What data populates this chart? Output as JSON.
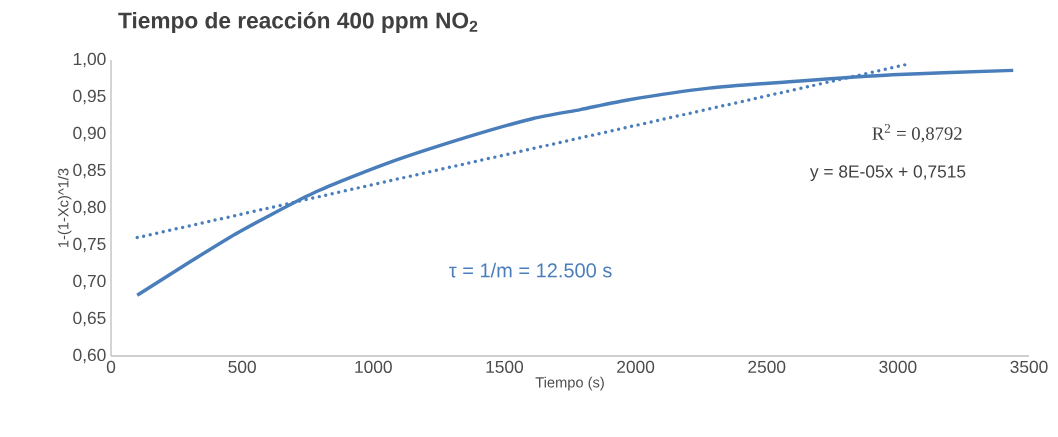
{
  "chart_data": {
    "type": "line",
    "title": "Tiempo de reacción 400 ppm NO$_{2}$",
    "xlabel": "Tiempo (s)",
    "ylabel": "1-(1-Xc)^1/3",
    "xlim": [
      0,
      3500
    ],
    "xticks": [
      0,
      500,
      1000,
      1500,
      2000,
      2500,
      3000,
      3500
    ],
    "ylim": [
      0.6,
      1.0
    ],
    "yticks": [
      {
        "value": 0.6,
        "label": "0,60"
      },
      {
        "value": 0.65,
        "label": "0,65"
      },
      {
        "value": 0.7,
        "label": "0,70"
      },
      {
        "value": 0.75,
        "label": "0,75"
      },
      {
        "value": 0.8,
        "label": "0,80"
      },
      {
        "value": 0.85,
        "label": "0,85"
      },
      {
        "value": 0.9,
        "label": "0,90"
      },
      {
        "value": 0.95,
        "label": "0,95"
      },
      {
        "value": 1.0,
        "label": "1,00"
      }
    ],
    "grid": false,
    "series": [
      {
        "color": "#4a7ebb",
        "line_style": "solid",
        "x": [
          100,
          300,
          490,
          770,
          1050,
          1360,
          1610,
          1790,
          1970,
          2280,
          2600,
          2980,
          3440
        ],
        "values": [
          0.682,
          0.727,
          0.768,
          0.82,
          0.86,
          0.896,
          0.921,
          0.933,
          0.946,
          0.962,
          0.971,
          0.98,
          0.986
        ]
      },
      {
        "type": "line",
        "color": "#4a7ebb",
        "line_style": "dotted",
        "x": [
          100,
          3046
        ],
        "values": [
          0.76,
          0.995
        ]
      }
    ],
    "annotations": [
      "τ = 1/m = 12.500 s",
      "R$^{2}$ = 0,8792",
      "y = 8E-05x + 0,7515"
    ]
  }
}
